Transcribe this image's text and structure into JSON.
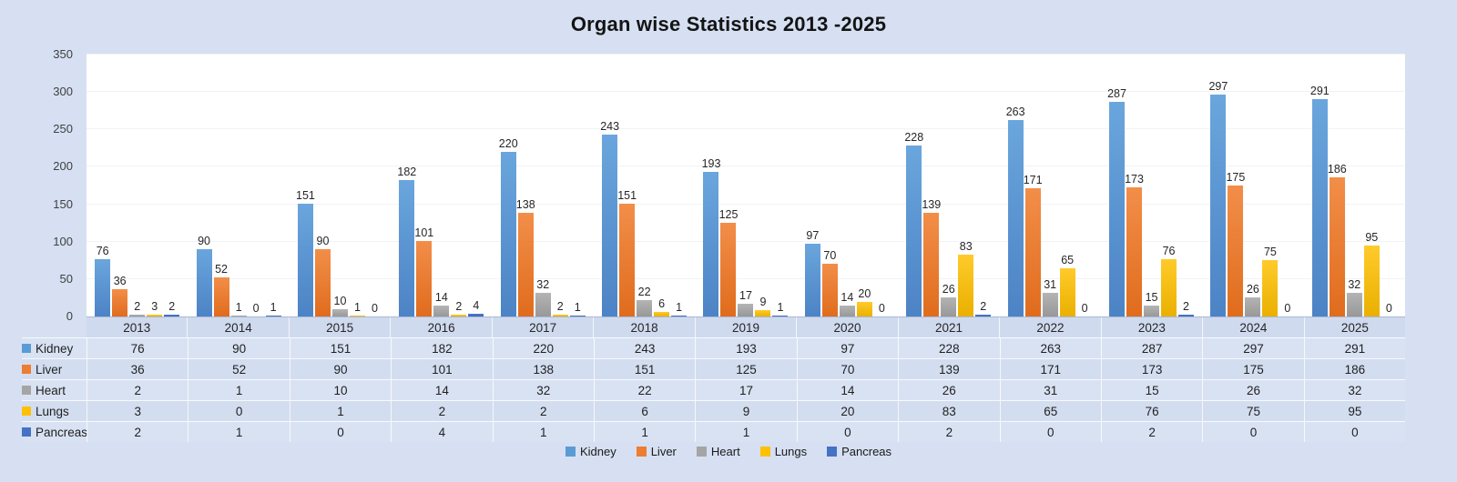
{
  "chart_data": {
    "type": "bar",
    "title": "Organ wise Statistics 2013 -2025",
    "categories": [
      "2013",
      "2014",
      "2015",
      "2016",
      "2017",
      "2018",
      "2019",
      "2020",
      "2021",
      "2022",
      "2023",
      "2024",
      "2025"
    ],
    "series": [
      {
        "name": "Kidney",
        "color": "#5b9bd5",
        "gradient": [
          "#6aa6dd",
          "#4c83c5"
        ],
        "values": [
          76,
          90,
          151,
          182,
          220,
          243,
          193,
          97,
          228,
          263,
          287,
          297,
          291
        ]
      },
      {
        "name": "Liver",
        "color": "#ed7d31",
        "gradient": [
          "#f28e49",
          "#e06c1d"
        ],
        "values": [
          36,
          52,
          90,
          101,
          138,
          151,
          125,
          70,
          139,
          171,
          173,
          175,
          186
        ]
      },
      {
        "name": "Heart",
        "color": "#a5a5a5",
        "gradient": [
          "#b4b4b4",
          "#989898"
        ],
        "values": [
          2,
          1,
          10,
          14,
          32,
          22,
          17,
          14,
          26,
          31,
          15,
          26,
          32
        ]
      },
      {
        "name": "Lungs",
        "color": "#ffc000",
        "gradient": [
          "#ffcb2b",
          "#eab000"
        ],
        "values": [
          3,
          0,
          1,
          2,
          2,
          6,
          9,
          20,
          83,
          65,
          76,
          75,
          95
        ]
      },
      {
        "name": "Pancreas",
        "color": "#4472c4",
        "gradient": [
          "#4f7dce",
          "#3b65b2"
        ],
        "values": [
          2,
          1,
          0,
          4,
          1,
          1,
          1,
          0,
          2,
          0,
          2,
          0,
          0
        ]
      }
    ],
    "ylim": [
      0,
      350
    ],
    "yticks": [
      0,
      50,
      100,
      150,
      200,
      250,
      300,
      350
    ],
    "grid": true,
    "legend_position": "bottom",
    "data_labels": true,
    "data_table": true,
    "legend_labels": [
      "Kidney",
      "Liver",
      "Heart",
      "Lungs",
      "Pancreas"
    ]
  },
  "colors": {
    "page_bg": "#d6e0f2",
    "plot_bg": "#ffffff",
    "year_band_bg": "#cfdaee",
    "table_row_bg": "#d9e2f3",
    "axis_text": "#3f3f3f",
    "label_text": "#262626"
  }
}
